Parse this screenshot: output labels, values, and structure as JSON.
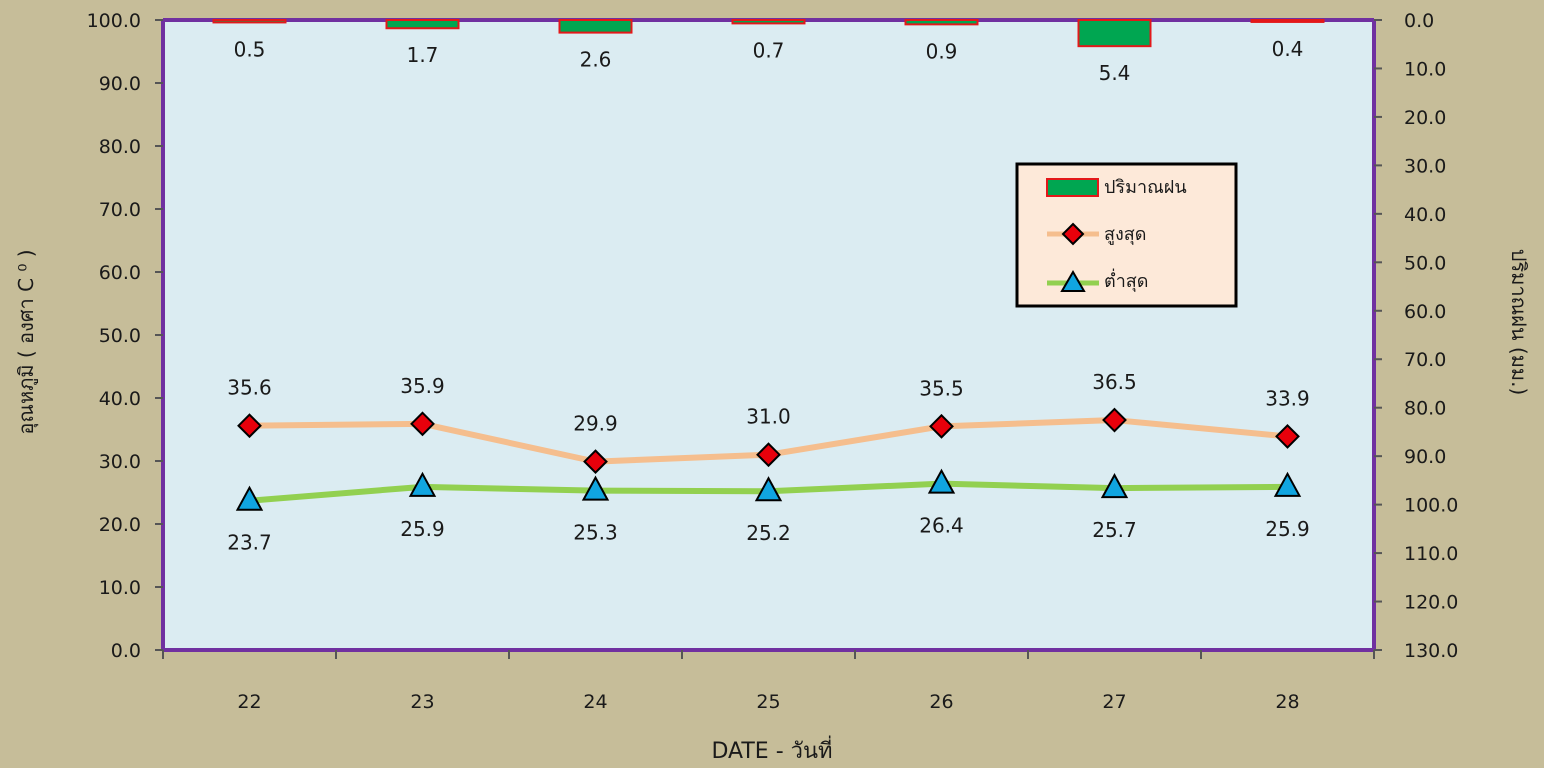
{
  "chart_data": {
    "type": "line",
    "title": "",
    "xlabel": "DATE - วันที่",
    "ylabel": "อุณหภูมิ  ( องศา C ⁰ )",
    "y2label": "ปริมาณฝน (มม.)",
    "categories": [
      "22",
      "23",
      "24",
      "25",
      "26",
      "27",
      "28"
    ],
    "ylim": [
      0,
      100
    ],
    "yticks": [
      "0.0",
      "10.0",
      "20.0",
      "30.0",
      "40.0",
      "50.0",
      "60.0",
      "70.0",
      "80.0",
      "90.0",
      "100.0"
    ],
    "y2lim": [
      0,
      130
    ],
    "y2_reversed": true,
    "y2ticks": [
      "0.0",
      "10.0",
      "20.0",
      "30.0",
      "40.0",
      "50.0",
      "60.0",
      "70.0",
      "80.0",
      "90.0",
      "100.0",
      "110.0",
      "120.0",
      "130.0"
    ],
    "series": [
      {
        "name": "ปริมาณฝน",
        "type": "bar",
        "axis": "right",
        "values": [
          0.5,
          1.7,
          2.6,
          0.7,
          0.9,
          5.4,
          0.4
        ],
        "labels": [
          "0.5",
          "1.7",
          "2.6",
          "0.7",
          "0.9",
          "5.4",
          "0.4"
        ],
        "color": "#00a651",
        "edge_color": "#e3181a"
      },
      {
        "name": "สูงสุด",
        "type": "line",
        "axis": "left",
        "marker": "diamond",
        "values": [
          35.6,
          35.9,
          29.9,
          31.0,
          35.5,
          36.5,
          33.9
        ],
        "labels": [
          "35.6",
          "35.9",
          "29.9",
          "31.0",
          "35.5",
          "36.5",
          "33.9"
        ],
        "color": "#f5be8e",
        "marker_color": "#e8000b"
      },
      {
        "name": "ต่ำสุด",
        "type": "line",
        "axis": "left",
        "marker": "triangle",
        "values": [
          23.7,
          25.9,
          25.3,
          25.2,
          26.4,
          25.7,
          25.9
        ],
        "labels": [
          "23.7",
          "25.9",
          "25.3",
          "25.2",
          "26.4",
          "25.7",
          "25.9"
        ],
        "color": "#92d050",
        "marker_color": "#10a5e0"
      }
    ],
    "legend_position": "right",
    "grid": false
  },
  "colors": {
    "background": "#c6bd99",
    "plot_area": "#dbecf2",
    "plot_border": "#7030a0",
    "legend_bg": "#fde9d9"
  }
}
